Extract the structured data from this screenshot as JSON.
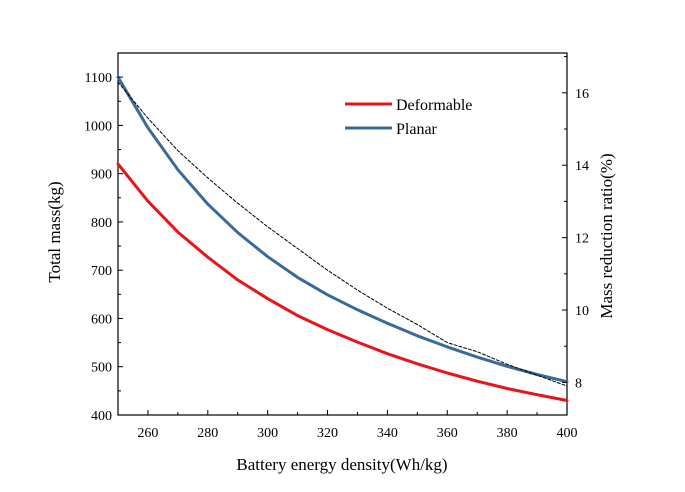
{
  "chart_data": {
    "type": "line",
    "xlabel": "Battery energy density(Wh/kg)",
    "ylabel_left": "Total mass(kg)",
    "ylabel_right": "Mass reduction ratio(%)",
    "xlim": [
      250,
      400
    ],
    "ylim_left": [
      400,
      1150
    ],
    "ylim_right": [
      7.1,
      17.1
    ],
    "x_ticks": [
      260,
      280,
      300,
      320,
      340,
      360,
      380,
      400
    ],
    "y_left_ticks": [
      400,
      500,
      600,
      700,
      800,
      900,
      1000,
      1100
    ],
    "y_right_ticks": [
      8,
      10,
      12,
      14,
      16
    ],
    "grid": false,
    "legend_position": "top-right",
    "x": [
      250,
      260,
      270,
      280,
      290,
      300,
      310,
      320,
      330,
      340,
      350,
      360,
      370,
      380,
      390,
      400
    ],
    "series": [
      {
        "name": "Deformable",
        "axis": "left",
        "color": "#e8141b",
        "values": [
          920,
          843,
          779,
          727,
          680,
          641,
          606,
          577,
          551,
          527,
          506,
          487,
          470,
          455,
          442,
          430
        ]
      },
      {
        "name": "Planar",
        "axis": "left",
        "color": "#3a6a99",
        "values": [
          1100,
          995,
          908,
          837,
          778,
          728,
          685,
          649,
          618,
          590,
          564,
          541,
          520,
          501,
          484,
          469
        ]
      },
      {
        "name": "",
        "axis": "right",
        "color": "#000000",
        "dash": true,
        "values": [
          16.3,
          15.3,
          14.4,
          13.65,
          12.95,
          12.3,
          11.7,
          11.1,
          10.55,
          10.05,
          9.6,
          9.1,
          8.85,
          8.5,
          8.2,
          7.9
        ]
      }
    ]
  }
}
